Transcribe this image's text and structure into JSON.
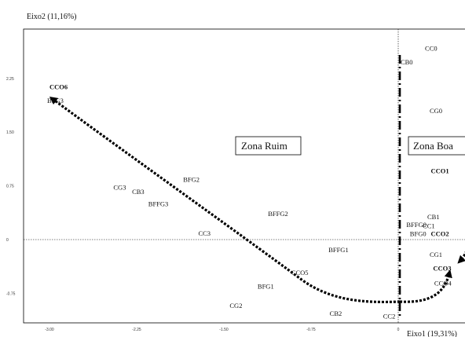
{
  "chart_data": {
    "type": "scatter",
    "title": "",
    "ylabel": "Eixo2 (11,16%)",
    "xlabel": "Eixo1 (19,31%)",
    "xlim": [
      -3.15,
      0.28
    ],
    "ylim": [
      -1.05,
      2.75
    ],
    "x_ticks": [
      "-3.00",
      "-2.25",
      "-1.50",
      "-0.75",
      "0"
    ],
    "y_ticks": [
      "2.25",
      "1.50",
      "0.75",
      "0",
      "-0.75"
    ],
    "grid": false,
    "zones": [
      {
        "label": "Zona Ruim"
      },
      {
        "label": "Zona Boa"
      }
    ],
    "points": [
      {
        "label": "CC0",
        "x": 0.23,
        "y": 2.67,
        "bold": false
      },
      {
        "label": "CB0",
        "x": 0.02,
        "y": 2.48,
        "bold": false
      },
      {
        "label": "CCO6",
        "x": -3.0,
        "y": 2.13,
        "bold": true
      },
      {
        "label": "BFG3",
        "x": -3.02,
        "y": 1.94,
        "bold": false
      },
      {
        "label": "CG0",
        "x": 0.27,
        "y": 1.8,
        "bold": false
      },
      {
        "label": "CCO1",
        "x": 0.28,
        "y": 0.96,
        "bold": true
      },
      {
        "label": "BFG2",
        "x": -1.85,
        "y": 0.84,
        "bold": false
      },
      {
        "label": "CG3",
        "x": -2.45,
        "y": 0.73,
        "bold": false
      },
      {
        "label": "CB3",
        "x": -2.29,
        "y": 0.67,
        "bold": false
      },
      {
        "label": "BFFG3",
        "x": -2.15,
        "y": 0.5,
        "bold": false
      },
      {
        "label": "BFFG2",
        "x": -1.12,
        "y": 0.36,
        "bold": false
      },
      {
        "label": "CB1",
        "x": 0.25,
        "y": 0.32,
        "bold": false
      },
      {
        "label": "BFFG0",
        "x": 0.07,
        "y": 0.21,
        "bold": false
      },
      {
        "label": "CC1",
        "x": 0.21,
        "y": 0.19,
        "bold": false
      },
      {
        "label": "CC3",
        "x": -1.72,
        "y": 0.09,
        "bold": false
      },
      {
        "label": "BFG0",
        "x": 0.1,
        "y": 0.08,
        "bold": false
      },
      {
        "label": "CCO2",
        "x": 0.28,
        "y": 0.08,
        "bold": true
      },
      {
        "label": "BFFG1",
        "x": -0.6,
        "y": -0.14,
        "bold": false
      },
      {
        "label": "CG1",
        "x": 0.27,
        "y": -0.21,
        "bold": false
      },
      {
        "label": "CCO3",
        "x": 0.3,
        "y": -0.4,
        "bold": true
      },
      {
        "label": "CCO5",
        "x": -0.92,
        "y": -0.46,
        "bold": false
      },
      {
        "label": "CCO4",
        "x": 0.31,
        "y": -0.61,
        "bold": false
      },
      {
        "label": "BFG1",
        "x": -1.21,
        "y": -0.65,
        "bold": false
      },
      {
        "label": "CG2",
        "x": -1.45,
        "y": -0.92,
        "bold": false
      },
      {
        "label": "CB2",
        "x": -0.59,
        "y": -1.03,
        "bold": false
      },
      {
        "label": "CC2",
        "x": -0.13,
        "y": -1.07,
        "bold": false
      }
    ]
  }
}
